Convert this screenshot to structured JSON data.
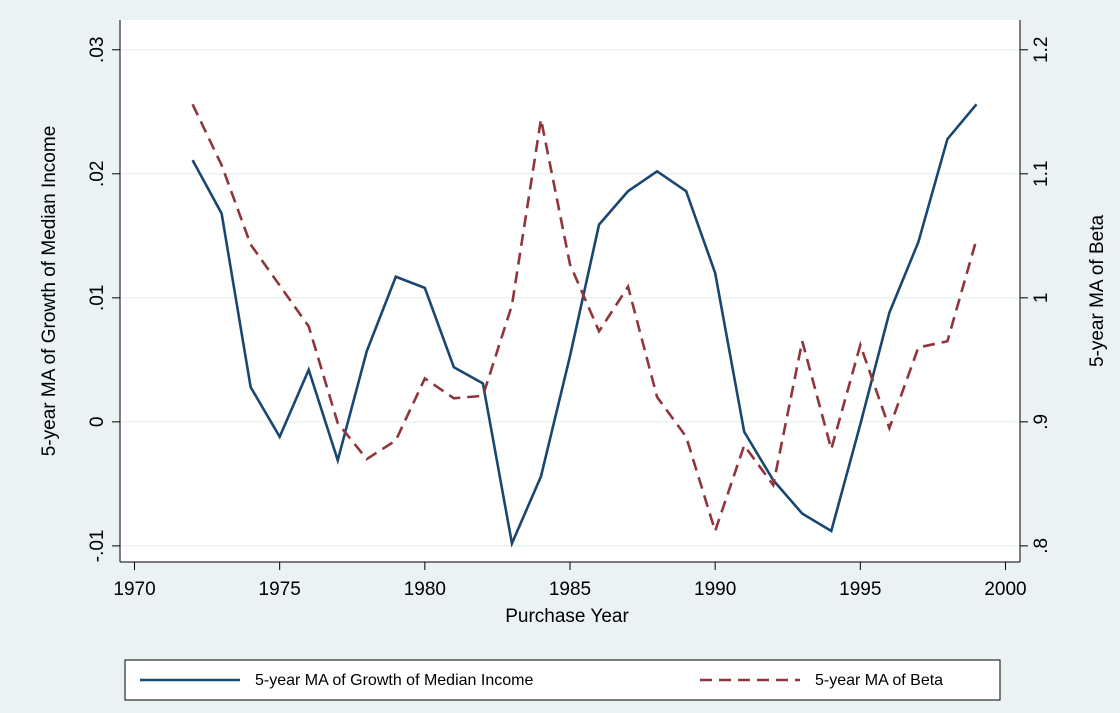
{
  "chart_data": {
    "type": "line",
    "xlabel": "Purchase Year",
    "ylabel": "5-year MA of Growth of Median Income",
    "y2label": "5-year MA of Beta",
    "x": [
      1972,
      1973,
      1974,
      1975,
      1976,
      1977,
      1978,
      1979,
      1980,
      1981,
      1982,
      1983,
      1984,
      1985,
      1986,
      1987,
      1988,
      1989,
      1990,
      1991,
      1992,
      1993,
      1994,
      1995,
      1996,
      1997,
      1998,
      1999
    ],
    "series": [
      {
        "name": "5-year MA of Growth of Median Income",
        "color": "#1a476f",
        "style": "solid",
        "axis": "y",
        "values": [
          0.0211,
          0.0168,
          0.0028,
          -0.0012,
          0.0042,
          -0.0031,
          0.0057,
          0.0117,
          0.0108,
          0.0044,
          0.0031,
          -0.0098,
          -0.0044,
          0.0053,
          0.0159,
          0.0186,
          0.0202,
          0.0186,
          0.012,
          -0.0008,
          -0.0047,
          -0.0074,
          -0.0088,
          -0.0002,
          0.0088,
          0.0145,
          0.0228,
          0.0256
        ]
      },
      {
        "name": "5-year MA of Beta",
        "color": "#90353b",
        "style": "dashed",
        "axis": "y2",
        "values": [
          1.156,
          1.107,
          1.043,
          1.01,
          0.977,
          0.899,
          0.87,
          0.885,
          0.935,
          0.919,
          0.921,
          0.994,
          1.144,
          1.027,
          0.973,
          1.009,
          0.92,
          0.888,
          0.812,
          0.881,
          0.849,
          0.965,
          0.878,
          0.962,
          0.895,
          0.96,
          0.965,
          1.047
        ]
      }
    ],
    "xlim": [
      1969.5,
      2000.5
    ],
    "xticks": [
      1970,
      1975,
      1980,
      1985,
      1990,
      1995,
      2000
    ],
    "ylim": [
      -0.0113,
      0.0324
    ],
    "yticks": [
      {
        "value": -0.01,
        "label": "-.01"
      },
      0,
      {
        "value": 0.01,
        "label": ".01"
      },
      {
        "value": 0.02,
        "label": ".02"
      },
      {
        "value": 0.03,
        "label": ".03"
      }
    ],
    "y2lim": [
      0.787,
      1.224
    ],
    "y2ticks": [
      {
        "value": 0.8,
        "label": ".8"
      },
      {
        "value": 0.9,
        "label": ".9"
      },
      1,
      1.1,
      1.2
    ],
    "grid": true,
    "legend": "bottom"
  }
}
